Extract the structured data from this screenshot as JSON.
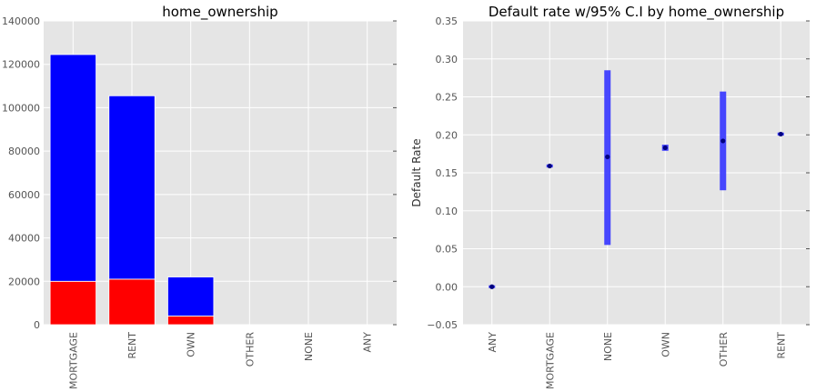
{
  "chart_data": [
    {
      "type": "bar",
      "title": "home_ownership",
      "xlabel": "",
      "ylabel": "",
      "categories": [
        "MORTGAGE",
        "RENT",
        "OWN",
        "OTHER",
        "NONE",
        "ANY"
      ],
      "stacked": true,
      "series": [
        {
          "values": [
            20000,
            21000,
            4000,
            0,
            0,
            0
          ],
          "color": "#ff0000"
        },
        {
          "values": [
            104500,
            84500,
            18000,
            0,
            0,
            0
          ],
          "color": "#0000ff"
        }
      ],
      "totals": [
        124500,
        105500,
        22000,
        0,
        0,
        0
      ],
      "ylim": [
        0,
        140000
      ],
      "yticks": [
        "0",
        "20000",
        "40000",
        "60000",
        "80000",
        "100000",
        "120000",
        "140000"
      ],
      "grid": true,
      "background": "#e5e5e5"
    },
    {
      "type": "scatter",
      "title": "Default rate w/95% C.I by home_ownership",
      "xlabel": "",
      "ylabel": "Default Rate",
      "categories": [
        "ANY",
        "MORTGAGE",
        "NONE",
        "OWN",
        "OTHER",
        "RENT"
      ],
      "values": [
        0.0,
        0.159,
        0.171,
        0.183,
        0.192,
        0.201
      ],
      "ci_lower": [
        0.0,
        0.157,
        0.055,
        0.179,
        0.127,
        0.199
      ],
      "ci_upper": [
        0.0,
        0.161,
        0.285,
        0.187,
        0.257,
        0.203
      ],
      "ylim": [
        -0.05,
        0.35
      ],
      "yticks": [
        "−0.05",
        "0.00",
        "0.05",
        "0.10",
        "0.15",
        "0.20",
        "0.25",
        "0.30",
        "0.35"
      ],
      "grid": true,
      "background": "#e5e5e5",
      "point_color": "#000080",
      "ci_color": "#3333ff"
    }
  ]
}
